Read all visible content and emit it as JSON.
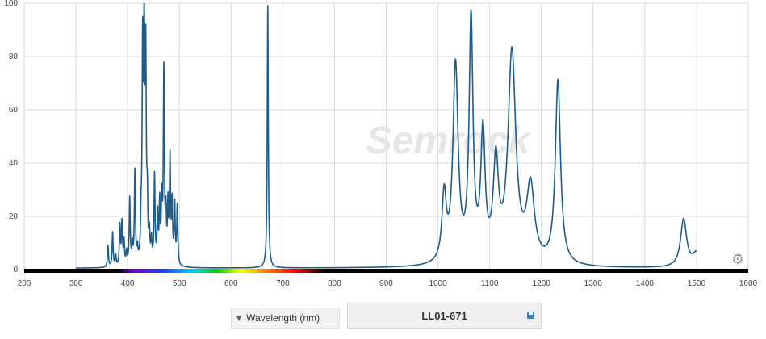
{
  "chart_data": {
    "type": "line",
    "title": "",
    "xlabel": "",
    "ylabel": "",
    "xlim": [
      200,
      1600
    ],
    "ylim": [
      0,
      100
    ],
    "x_ticks": [
      200,
      300,
      400,
      500,
      600,
      700,
      800,
      900,
      1000,
      1100,
      1200,
      1300,
      1400,
      1500,
      1600
    ],
    "y_ticks": [
      0,
      20,
      40,
      60,
      80,
      100
    ],
    "grid": true,
    "series_x_range": [
      300,
      1500
    ],
    "series": [
      {
        "color": "#1f5c8c",
        "baseline": 0.5,
        "peaks": [
          {
            "x": 362,
            "y": 8,
            "w": 1.2
          },
          {
            "x": 371,
            "y": 13,
            "w": 1.2
          },
          {
            "x": 377,
            "y": 4,
            "w": 1.2
          },
          {
            "x": 385,
            "y": 15,
            "w": 1.2
          },
          {
            "x": 389,
            "y": 16,
            "w": 1.2
          },
          {
            "x": 393,
            "y": 9,
            "w": 1.2
          },
          {
            "x": 398,
            "y": 5,
            "w": 1.2
          },
          {
            "x": 404,
            "y": 25,
            "w": 1.2
          },
          {
            "x": 409,
            "y": 7,
            "w": 1.2
          },
          {
            "x": 414,
            "y": 35,
            "w": 1.2
          },
          {
            "x": 419,
            "y": 5,
            "w": 1.2
          },
          {
            "x": 426,
            "y": 13,
            "w": 1.2
          },
          {
            "x": 429,
            "y": 77,
            "w": 1.2
          },
          {
            "x": 432,
            "y": 84,
            "w": 1.2
          },
          {
            "x": 435,
            "y": 73,
            "w": 1.2
          },
          {
            "x": 438,
            "y": 20,
            "w": 1.2
          },
          {
            "x": 442,
            "y": 10,
            "w": 1.2
          },
          {
            "x": 446,
            "y": 8,
            "w": 1.2
          },
          {
            "x": 452,
            "y": 33,
            "w": 1.2
          },
          {
            "x": 458,
            "y": 18,
            "w": 1.2
          },
          {
            "x": 462,
            "y": 22,
            "w": 1.2
          },
          {
            "x": 466,
            "y": 22,
            "w": 1.2
          },
          {
            "x": 470,
            "y": 72,
            "w": 1.2
          },
          {
            "x": 474,
            "y": 17,
            "w": 1.2
          },
          {
            "x": 478,
            "y": 21,
            "w": 1.2
          },
          {
            "x": 482,
            "y": 39,
            "w": 1.2
          },
          {
            "x": 486,
            "y": 22,
            "w": 1.2
          },
          {
            "x": 491,
            "y": 22,
            "w": 1.2
          },
          {
            "x": 496,
            "y": 22,
            "w": 1.2
          },
          {
            "x": 671,
            "y": 98.5,
            "w": 1.2
          },
          {
            "x": 1012,
            "y": 25,
            "w": 5
          },
          {
            "x": 1034,
            "y": 74,
            "w": 6
          },
          {
            "x": 1064,
            "y": 90,
            "w": 4.5
          },
          {
            "x": 1087,
            "y": 47,
            "w": 5
          },
          {
            "x": 1112,
            "y": 36,
            "w": 6
          },
          {
            "x": 1143,
            "y": 79,
            "w": 9
          },
          {
            "x": 1179,
            "y": 28,
            "w": 9
          },
          {
            "x": 1232,
            "y": 69,
            "w": 6
          },
          {
            "x": 1475,
            "y": 18,
            "w": 7
          },
          {
            "x": 1500,
            "y": 5,
            "w": 9
          }
        ]
      }
    ]
  },
  "watermark_text": "Semrock",
  "controls": {
    "axis_label": "Wavelength (nm)",
    "filter_name": "LL01-671"
  },
  "icons": {
    "settings": "gear-icon",
    "axis_dropdown": "caret-down-icon",
    "save": "floppy-save-icon"
  }
}
